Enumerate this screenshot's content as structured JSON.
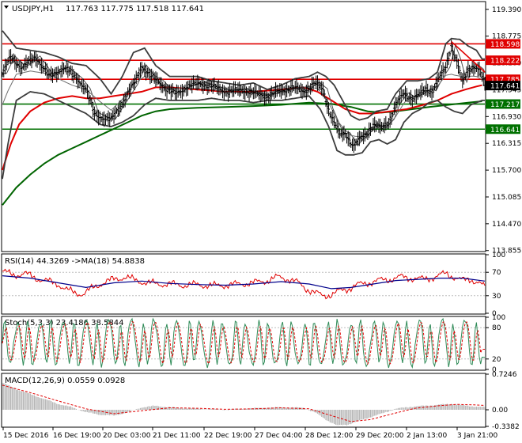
{
  "header": {
    "symbol": "USDJPY,H1",
    "ohlc": "117.763 117.775 117.518 117.641",
    "dropdown_icon": "triangle-down-icon"
  },
  "panels": {
    "rsi": {
      "label": "RSI(14) 44.3269  ->MA(18) 54.8838",
      "ticks": [
        "100",
        "70",
        "30",
        "0"
      ]
    },
    "stoch": {
      "label": "Stoch(5,3,3) 23.4186 38.5844",
      "ticks": [
        "100",
        "80",
        "20",
        "0"
      ]
    },
    "macd": {
      "label": "MACD(12,26,9) 0.0559 0.0928",
      "ticks": [
        "0.7246",
        "0.00",
        "-0.3382"
      ]
    }
  },
  "colors": {
    "price_bars": "#000000",
    "bollinger": "#3c3c3c",
    "ma_red": "#e00000",
    "ma_green": "#006400",
    "level_red": "#e00000",
    "level_green": "#007000",
    "rsi_line": "#e00000",
    "rsi_ma": "#00008b",
    "stoch_main": "#2e8b57",
    "stoch_signal": "#e00000",
    "macd_hist": "#b4b4b4",
    "macd_signal": "#e00000"
  },
  "chart_data": {
    "type": "candlestick",
    "title": "USDJPY,H1",
    "y_ticks": [
      "119.390",
      "118.775",
      "118.160",
      "117.545",
      "116.930",
      "116.315",
      "115.700",
      "115.085",
      "114.470",
      "113.855"
    ],
    "ylim": [
      113.85,
      119.55
    ],
    "x_ticks": [
      "15 Dec 2016",
      "16 Dec 19:00",
      "20 Dec 03:00",
      "21 Dec 11:00",
      "22 Dec 19:00",
      "27 Dec 04:00",
      "28 Dec 12:00",
      "29 Dec 20:00",
      "2 Jan 13:00",
      "3 Jan 21:00"
    ],
    "levels": [
      {
        "label": "118.598",
        "value": 118.598,
        "color": "red"
      },
      {
        "label": "118.222",
        "value": 118.222,
        "color": "red"
      },
      {
        "label": "117.785",
        "value": 117.785,
        "color": "red"
      },
      {
        "label": "117.641",
        "value": 117.641,
        "color": "current"
      },
      {
        "label": "117.217",
        "value": 117.217,
        "color": "green"
      },
      {
        "label": "116.641",
        "value": 116.641,
        "color": "green"
      }
    ],
    "price_path": [
      [
        0,
        117.9
      ],
      [
        6,
        118.3
      ],
      [
        14,
        118.05
      ],
      [
        24,
        118.3
      ],
      [
        34,
        117.85
      ],
      [
        44,
        118.05
      ],
      [
        54,
        117.8
      ],
      [
        60,
        117.55
      ],
      [
        66,
        117.0
      ],
      [
        72,
        116.9
      ],
      [
        78,
        116.85
      ],
      [
        86,
        117.25
      ],
      [
        94,
        117.65
      ],
      [
        100,
        118.1
      ],
      [
        106,
        117.85
      ],
      [
        112,
        117.75
      ],
      [
        118,
        117.55
      ],
      [
        124,
        117.45
      ],
      [
        132,
        117.6
      ],
      [
        142,
        117.7
      ],
      [
        152,
        117.6
      ],
      [
        162,
        117.5
      ],
      [
        172,
        117.55
      ],
      [
        182,
        117.45
      ],
      [
        190,
        117.4
      ],
      [
        198,
        117.5
      ],
      [
        208,
        117.6
      ],
      [
        216,
        117.5
      ],
      [
        224,
        117.7
      ],
      [
        230,
        117.55
      ],
      [
        234,
        117.1
      ],
      [
        238,
        116.8
      ],
      [
        242,
        116.5
      ],
      [
        246,
        116.55
      ],
      [
        252,
        116.25
      ],
      [
        256,
        116.4
      ],
      [
        260,
        116.5
      ],
      [
        266,
        116.75
      ],
      [
        272,
        116.65
      ],
      [
        278,
        116.85
      ],
      [
        282,
        117.2
      ],
      [
        288,
        117.45
      ],
      [
        294,
        117.35
      ],
      [
        300,
        117.45
      ],
      [
        304,
        117.55
      ],
      [
        308,
        117.5
      ],
      [
        312,
        117.75
      ],
      [
        318,
        118.05
      ],
      [
        322,
        118.55
      ],
      [
        326,
        118.2
      ],
      [
        330,
        117.7
      ],
      [
        334,
        118.0
      ],
      [
        338,
        118.1
      ],
      [
        342,
        118.0
      ],
      [
        346,
        117.65
      ]
    ],
    "bollinger_upper": [
      [
        0,
        118.9
      ],
      [
        10,
        118.5
      ],
      [
        20,
        118.45
      ],
      [
        30,
        118.4
      ],
      [
        40,
        118.3
      ],
      [
        50,
        118.15
      ],
      [
        60,
        118.1
      ],
      [
        70,
        117.8
      ],
      [
        78,
        117.45
      ],
      [
        86,
        117.85
      ],
      [
        94,
        118.4
      ],
      [
        102,
        118.5
      ],
      [
        110,
        118.1
      ],
      [
        120,
        117.85
      ],
      [
        130,
        117.85
      ],
      [
        140,
        117.85
      ],
      [
        150,
        117.75
      ],
      [
        160,
        117.7
      ],
      [
        170,
        117.65
      ],
      [
        180,
        117.7
      ],
      [
        190,
        117.55
      ],
      [
        200,
        117.65
      ],
      [
        210,
        117.8
      ],
      [
        220,
        117.85
      ],
      [
        226,
        117.95
      ],
      [
        232,
        117.85
      ],
      [
        238,
        117.65
      ],
      [
        244,
        117.3
      ],
      [
        250,
        116.95
      ],
      [
        256,
        116.85
      ],
      [
        262,
        116.9
      ],
      [
        268,
        117.05
      ],
      [
        276,
        117.1
      ],
      [
        282,
        117.45
      ],
      [
        290,
        117.75
      ],
      [
        298,
        117.75
      ],
      [
        306,
        117.8
      ],
      [
        312,
        117.95
      ],
      [
        318,
        118.6
      ],
      [
        322,
        118.72
      ],
      [
        328,
        118.7
      ],
      [
        334,
        118.55
      ],
      [
        340,
        118.45
      ],
      [
        344,
        118.25
      ]
    ],
    "bollinger_lower": [
      [
        0,
        115.5
      ],
      [
        4,
        116.3
      ],
      [
        10,
        117.3
      ],
      [
        20,
        117.5
      ],
      [
        30,
        117.45
      ],
      [
        40,
        117.3
      ],
      [
        50,
        117.15
      ],
      [
        60,
        117.0
      ],
      [
        70,
        116.75
      ],
      [
        78,
        116.7
      ],
      [
        86,
        116.8
      ],
      [
        94,
        116.95
      ],
      [
        102,
        117.2
      ],
      [
        110,
        117.35
      ],
      [
        120,
        117.3
      ],
      [
        130,
        117.3
      ],
      [
        140,
        117.3
      ],
      [
        150,
        117.35
      ],
      [
        160,
        117.3
      ],
      [
        170,
        117.3
      ],
      [
        180,
        117.25
      ],
      [
        190,
        117.3
      ],
      [
        200,
        117.3
      ],
      [
        210,
        117.35
      ],
      [
        220,
        117.4
      ],
      [
        228,
        117.1
      ],
      [
        234,
        116.7
      ],
      [
        240,
        116.15
      ],
      [
        246,
        116.05
      ],
      [
        252,
        116.05
      ],
      [
        258,
        116.1
      ],
      [
        264,
        116.35
      ],
      [
        270,
        116.4
      ],
      [
        276,
        116.3
      ],
      [
        282,
        116.4
      ],
      [
        288,
        116.8
      ],
      [
        294,
        117.0
      ],
      [
        300,
        117.1
      ],
      [
        306,
        117.25
      ],
      [
        312,
        117.3
      ],
      [
        318,
        117.15
      ],
      [
        324,
        117.05
      ],
      [
        330,
        117.0
      ],
      [
        336,
        117.2
      ],
      [
        344,
        117.3
      ]
    ],
    "ma_red": [
      [
        0,
        115.7
      ],
      [
        6,
        116.3
      ],
      [
        12,
        116.75
      ],
      [
        20,
        117.05
      ],
      [
        30,
        117.25
      ],
      [
        40,
        117.35
      ],
      [
        50,
        117.4
      ],
      [
        60,
        117.35
      ],
      [
        70,
        117.35
      ],
      [
        80,
        117.4
      ],
      [
        90,
        117.45
      ],
      [
        100,
        117.5
      ],
      [
        110,
        117.6
      ],
      [
        120,
        117.6
      ],
      [
        140,
        117.55
      ],
      [
        160,
        117.5
      ],
      [
        180,
        117.5
      ],
      [
        200,
        117.55
      ],
      [
        216,
        117.6
      ],
      [
        226,
        117.5
      ],
      [
        236,
        117.3
      ],
      [
        246,
        117.1
      ],
      [
        256,
        117.0
      ],
      [
        266,
        117.0
      ],
      [
        278,
        117.05
      ],
      [
        290,
        117.1
      ],
      [
        302,
        117.2
      ],
      [
        312,
        117.3
      ],
      [
        322,
        117.45
      ],
      [
        332,
        117.55
      ],
      [
        340,
        117.62
      ],
      [
        344,
        117.65
      ]
    ],
    "ma_green": [
      [
        0,
        114.9
      ],
      [
        10,
        115.3
      ],
      [
        20,
        115.6
      ],
      [
        30,
        115.85
      ],
      [
        40,
        116.05
      ],
      [
        50,
        116.2
      ],
      [
        60,
        116.35
      ],
      [
        70,
        116.5
      ],
      [
        80,
        116.65
      ],
      [
        90,
        116.8
      ],
      [
        100,
        116.95
      ],
      [
        110,
        117.05
      ],
      [
        120,
        117.1
      ],
      [
        140,
        117.13
      ],
      [
        160,
        117.15
      ],
      [
        180,
        117.17
      ],
      [
        200,
        117.2
      ],
      [
        220,
        117.25
      ],
      [
        236,
        117.22
      ],
      [
        250,
        117.15
      ],
      [
        262,
        117.05
      ],
      [
        272,
        117.02
      ],
      [
        282,
        117.05
      ],
      [
        294,
        117.1
      ],
      [
        306,
        117.15
      ],
      [
        320,
        117.2
      ],
      [
        334,
        117.25
      ],
      [
        344,
        117.28
      ]
    ],
    "trend_lines": [
      {
        "from": [
          322,
          118.65
        ],
        "to": [
          346,
          117.95
        ]
      }
    ],
    "rsi_ylim": [
      0,
      100
    ],
    "rsi_values": [
      [
        0,
        72
      ],
      [
        8,
        65
      ],
      [
        16,
        68
      ],
      [
        24,
        60
      ],
      [
        32,
        55
      ],
      [
        40,
        50
      ],
      [
        46,
        40
      ],
      [
        52,
        35
      ],
      [
        58,
        33
      ],
      [
        64,
        42
      ],
      [
        72,
        52
      ],
      [
        80,
        58
      ],
      [
        88,
        62
      ],
      [
        96,
        56
      ],
      [
        104,
        52
      ],
      [
        112,
        50
      ],
      [
        120,
        50
      ],
      [
        130,
        48
      ],
      [
        140,
        49
      ],
      [
        150,
        47
      ],
      [
        160,
        48
      ],
      [
        170,
        50
      ],
      [
        180,
        52
      ],
      [
        190,
        56
      ],
      [
        198,
        62
      ],
      [
        206,
        58
      ],
      [
        212,
        52
      ],
      [
        218,
        42
      ],
      [
        224,
        35
      ],
      [
        230,
        30
      ],
      [
        236,
        32
      ],
      [
        242,
        38
      ],
      [
        248,
        42
      ],
      [
        254,
        48
      ],
      [
        262,
        52
      ],
      [
        270,
        56
      ],
      [
        278,
        58
      ],
      [
        286,
        62
      ],
      [
        294,
        60
      ],
      [
        302,
        58
      ],
      [
        310,
        62
      ],
      [
        318,
        68
      ],
      [
        324,
        62
      ],
      [
        330,
        56
      ],
      [
        336,
        58
      ],
      [
        342,
        52
      ],
      [
        346,
        44
      ]
    ],
    "rsi_ma_values": [
      [
        0,
        64
      ],
      [
        20,
        60
      ],
      [
        40,
        52
      ],
      [
        60,
        44
      ],
      [
        80,
        52
      ],
      [
        100,
        55
      ],
      [
        120,
        51
      ],
      [
        140,
        49
      ],
      [
        160,
        48
      ],
      [
        180,
        50
      ],
      [
        200,
        54
      ],
      [
        220,
        50
      ],
      [
        236,
        42
      ],
      [
        250,
        44
      ],
      [
        266,
        50
      ],
      [
        282,
        56
      ],
      [
        298,
        58
      ],
      [
        314,
        60
      ],
      [
        330,
        60
      ],
      [
        346,
        55
      ]
    ],
    "stoch_ylim": [
      0,
      100
    ],
    "stoch_cycles": 42,
    "stoch_last": 23.4186,
    "stoch_signal_last": 38.5844,
    "macd_ylim": [
      -0.3382,
      0.7246
    ],
    "macd_hist": [
      [
        0,
        0.55
      ],
      [
        10,
        0.42
      ],
      [
        20,
        0.32
      ],
      [
        30,
        0.22
      ],
      [
        40,
        0.12
      ],
      [
        50,
        0.05
      ],
      [
        60,
        -0.05
      ],
      [
        70,
        -0.1
      ],
      [
        80,
        -0.12
      ],
      [
        90,
        -0.05
      ],
      [
        100,
        0.05
      ],
      [
        110,
        0.08
      ],
      [
        120,
        0.05
      ],
      [
        140,
        0.02
      ],
      [
        160,
        0.0
      ],
      [
        180,
        0.03
      ],
      [
        200,
        0.05
      ],
      [
        216,
        0.04
      ],
      [
        224,
        -0.05
      ],
      [
        232,
        -0.2
      ],
      [
        240,
        -0.32
      ],
      [
        248,
        -0.3
      ],
      [
        256,
        -0.22
      ],
      [
        264,
        -0.15
      ],
      [
        272,
        -0.08
      ],
      [
        282,
        0.02
      ],
      [
        292,
        0.06
      ],
      [
        302,
        0.08
      ],
      [
        312,
        0.1
      ],
      [
        322,
        0.12
      ],
      [
        330,
        0.09
      ],
      [
        338,
        0.07
      ],
      [
        346,
        0.05
      ]
    ],
    "macd_signal": [
      [
        0,
        0.5
      ],
      [
        20,
        0.35
      ],
      [
        40,
        0.18
      ],
      [
        60,
        0.02
      ],
      [
        80,
        -0.08
      ],
      [
        100,
        -0.02
      ],
      [
        120,
        0.04
      ],
      [
        140,
        0.03
      ],
      [
        160,
        0.01
      ],
      [
        180,
        0.02
      ],
      [
        200,
        0.04
      ],
      [
        220,
        0.02
      ],
      [
        236,
        -0.12
      ],
      [
        250,
        -0.24
      ],
      [
        264,
        -0.2
      ],
      [
        280,
        -0.08
      ],
      [
        296,
        0.03
      ],
      [
        312,
        0.08
      ],
      [
        326,
        0.11
      ],
      [
        338,
        0.1
      ],
      [
        346,
        0.09
      ]
    ]
  }
}
